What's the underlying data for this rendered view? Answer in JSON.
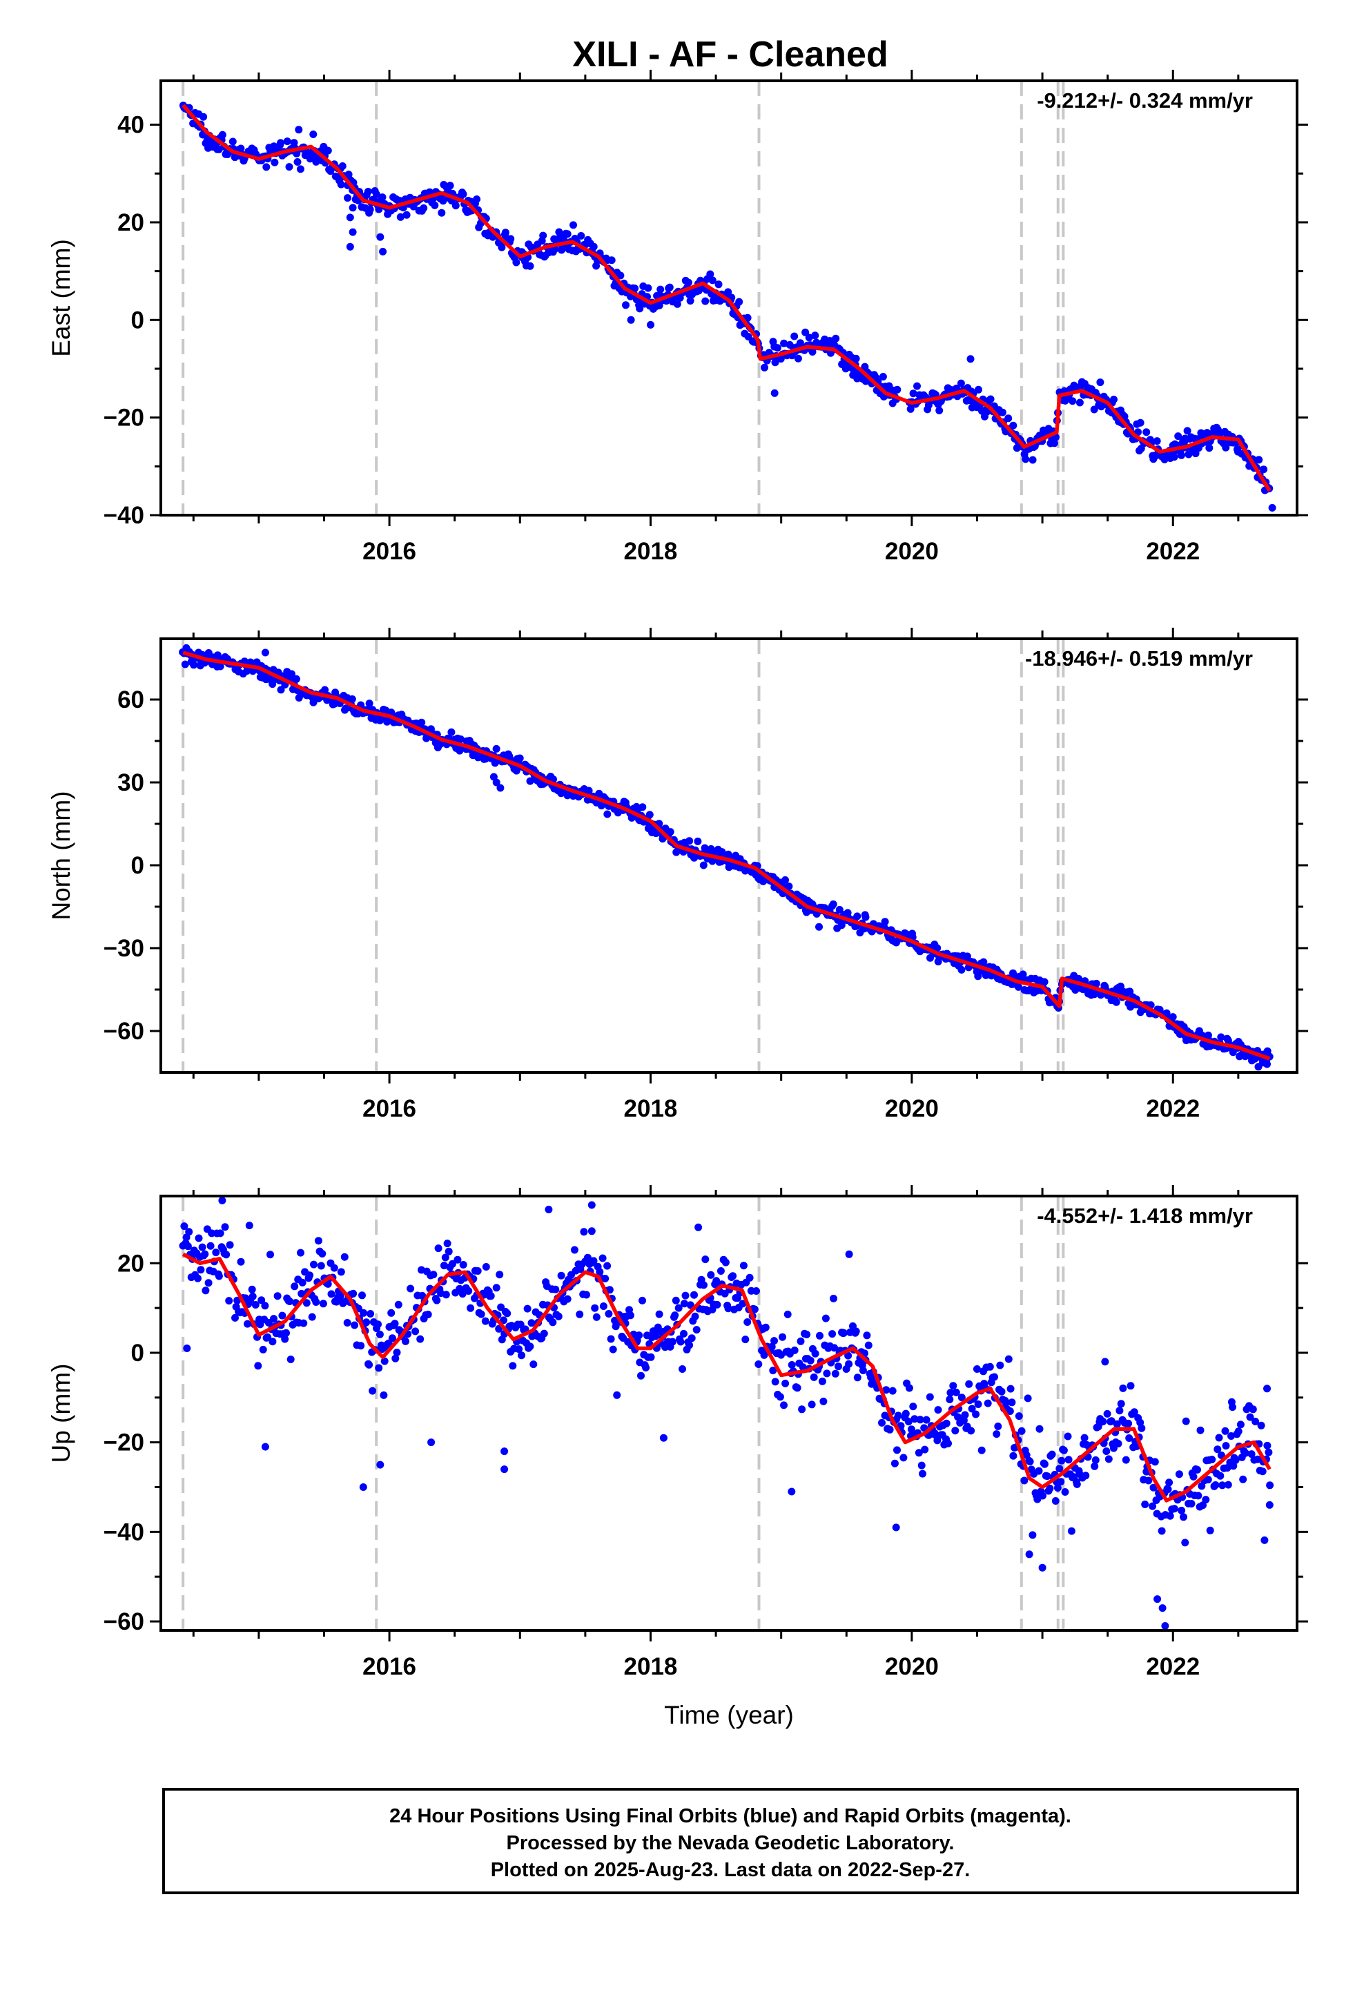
{
  "title": "XILI  - AF - Cleaned",
  "footer": {
    "lines": [
      "24 Hour Positions Using Final Orbits (blue) and Rapid Orbits (magenta).",
      "Processed by the Nevada Geodetic Laboratory.",
      "Plotted on 2025-Aug-23. Last data on 2022-Sep-27."
    ]
  },
  "colors": {
    "data_points": "#0000ff",
    "model_fit": "#ff0000",
    "steps": "#c8c8c8",
    "frame": "#000000"
  },
  "chart_data": [
    {
      "type": "scatter",
      "ylabel": "East (mm)",
      "xlabel": "",
      "rate_label": "-9.212+/- 0.324 mm/yr",
      "xlim": [
        2014.25,
        2022.95
      ],
      "ylim": [
        -40,
        49
      ],
      "xticks": [
        2016,
        2018,
        2020,
        2022
      ],
      "xtick_labels": [
        "2016",
        "2018",
        "2020",
        "2022"
      ],
      "yticks": [
        -40,
        -20,
        0,
        20,
        40
      ],
      "ytick_labels": [
        "−40",
        "−20",
        "0",
        "20",
        "40"
      ],
      "steps": [
        2014.42,
        2015.9,
        2018.83,
        2020.84,
        2021.12,
        2021.16
      ],
      "fit": {
        "x": [
          2014.42,
          2014.6,
          2014.8,
          2015.0,
          2015.2,
          2015.4,
          2015.6,
          2015.8,
          2016.0,
          2016.2,
          2016.4,
          2016.6,
          2016.8,
          2017.0,
          2017.2,
          2017.4,
          2017.6,
          2017.8,
          2018.0,
          2018.2,
          2018.4,
          2018.6,
          2018.82,
          2018.84,
          2019.0,
          2019.2,
          2019.4,
          2019.6,
          2019.8,
          2020.0,
          2020.2,
          2020.4,
          2020.6,
          2020.83,
          2020.86,
          2021.11,
          2021.13,
          2021.3,
          2021.5,
          2021.7,
          2021.9,
          2022.1,
          2022.3,
          2022.5,
          2022.74
        ],
        "y": [
          44,
          38.5,
          34.5,
          33,
          34.5,
          35.5,
          31,
          24.5,
          23,
          24.5,
          26,
          24,
          18,
          13,
          15,
          16,
          13,
          6.5,
          3.5,
          5.5,
          7.5,
          4,
          -4,
          -8,
          -7,
          -5.5,
          -6,
          -10,
          -15,
          -17,
          -16,
          -14.5,
          -18,
          -25,
          -26,
          -23,
          -15.5,
          -14.5,
          -17,
          -23.5,
          -27,
          -26,
          -24,
          -24.5,
          -35
        ]
      },
      "noise_mm": 1.2,
      "outliers": [
        {
          "x": 2015.68,
          "y": 25
        },
        {
          "x": 2015.72,
          "y": 23
        },
        {
          "x": 2015.7,
          "y": 21
        },
        {
          "x": 2015.93,
          "y": 17
        },
        {
          "x": 2015.95,
          "y": 14
        },
        {
          "x": 2015.72,
          "y": 18
        },
        {
          "x": 2015.7,
          "y": 15
        },
        {
          "x": 2017.85,
          "y": 0
        },
        {
          "x": 2018.0,
          "y": -1
        },
        {
          "x": 2018.95,
          "y": -15
        },
        {
          "x": 2020.45,
          "y": -8
        },
        {
          "x": 2021.6,
          "y": -21
        },
        {
          "x": 2022.76,
          "y": -38.5
        }
      ]
    },
    {
      "type": "scatter",
      "ylabel": "North (mm)",
      "xlabel": "",
      "rate_label": "-18.946+/- 0.519 mm/yr",
      "xlim": [
        2014.25,
        2022.95
      ],
      "ylim": [
        -75,
        82
      ],
      "xticks": [
        2016,
        2018,
        2020,
        2022
      ],
      "xtick_labels": [
        "2016",
        "2018",
        "2020",
        "2022"
      ],
      "yticks": [
        -60,
        -30,
        0,
        30,
        60
      ],
      "ytick_labels": [
        "−60",
        "−30",
        "0",
        "30",
        "60"
      ],
      "steps": [
        2014.42,
        2015.9,
        2018.83,
        2020.84,
        2021.12,
        2021.16
      ],
      "fit": {
        "x": [
          2014.42,
          2014.6,
          2014.8,
          2015.0,
          2015.2,
          2015.4,
          2015.6,
          2015.8,
          2016.0,
          2016.2,
          2016.4,
          2016.6,
          2016.8,
          2017.0,
          2017.2,
          2017.4,
          2017.6,
          2017.8,
          2018.0,
          2018.2,
          2018.4,
          2018.6,
          2018.8,
          2019.0,
          2019.2,
          2019.4,
          2019.6,
          2019.8,
          2020.0,
          2020.2,
          2020.4,
          2020.6,
          2020.8,
          2021.0,
          2021.13,
          2021.15,
          2021.3,
          2021.5,
          2021.7,
          2021.9,
          2022.1,
          2022.3,
          2022.5,
          2022.74
        ],
        "y": [
          77,
          74.5,
          73,
          71.5,
          67,
          62.5,
          60.5,
          56,
          54,
          50,
          45.5,
          43,
          39.5,
          36,
          30.5,
          27,
          24,
          20.5,
          16,
          7,
          4,
          2,
          -1,
          -8,
          -15,
          -18,
          -21,
          -24,
          -27.5,
          -32,
          -35,
          -38,
          -42,
          -44,
          -51,
          -41,
          -43,
          -46,
          -49,
          -54,
          -61,
          -64,
          -66,
          -70
        ]
      },
      "noise_mm": 1.5,
      "outliers": [
        {
          "x": 2016.82,
          "y": 30
        },
        {
          "x": 2016.85,
          "y": 28
        },
        {
          "x": 2016.8,
          "y": 32
        },
        {
          "x": 2015.05,
          "y": 77
        },
        {
          "x": 2022.72,
          "y": -72
        }
      ]
    },
    {
      "type": "scatter",
      "ylabel": "Up (mm)",
      "xlabel": "Time (year)",
      "rate_label": "-4.552+/- 1.418 mm/yr",
      "xlim": [
        2014.25,
        2022.95
      ],
      "ylim": [
        -62,
        35
      ],
      "xticks": [
        2016,
        2018,
        2020,
        2022
      ],
      "xtick_labels": [
        "2016",
        "2018",
        "2020",
        "2022"
      ],
      "yticks": [
        -60,
        -40,
        -20,
        0,
        20
      ],
      "ytick_labels": [
        "−60",
        "−40",
        "−20",
        "0",
        "20"
      ],
      "steps": [
        2014.42,
        2015.9,
        2018.83,
        2020.84,
        2021.12,
        2021.16
      ],
      "fit": {
        "x": [
          2014.42,
          2014.55,
          2014.7,
          2014.85,
          2015.0,
          2015.2,
          2015.4,
          2015.55,
          2015.7,
          2015.85,
          2015.95,
          2016.1,
          2016.3,
          2016.45,
          2016.58,
          2016.75,
          2016.95,
          2017.1,
          2017.3,
          2017.5,
          2017.6,
          2017.75,
          2017.9,
          2018.0,
          2018.2,
          2018.4,
          2018.55,
          2018.7,
          2018.85,
          2019.0,
          2019.2,
          2019.4,
          2019.55,
          2019.7,
          2019.85,
          2019.95,
          2020.1,
          2020.3,
          2020.5,
          2020.6,
          2020.75,
          2020.9,
          2021.0,
          2021.15,
          2021.35,
          2021.55,
          2021.7,
          2021.85,
          2021.95,
          2022.1,
          2022.3,
          2022.5,
          2022.62,
          2022.74
        ],
        "y": [
          22,
          20,
          21,
          13,
          4,
          7,
          14,
          17,
          12,
          2,
          -1,
          4,
          13,
          17.5,
          18,
          10,
          3,
          5,
          13,
          18,
          17,
          8,
          1,
          1,
          6,
          12,
          15,
          14,
          3,
          -5,
          -4,
          -1,
          1,
          -3,
          -15,
          -20,
          -18,
          -13,
          -9,
          -8,
          -15,
          -28,
          -30,
          -27,
          -22,
          -17,
          -17,
          -28,
          -33,
          -31,
          -26,
          -21,
          -20,
          -26
        ]
      },
      "noise_mm": 4.0,
      "outliers": [
        {
          "x": 2014.45,
          "y": 1
        },
        {
          "x": 2014.72,
          "y": 34
        },
        {
          "x": 2015.05,
          "y": -21
        },
        {
          "x": 2015.8,
          "y": -30
        },
        {
          "x": 2015.93,
          "y": -25
        },
        {
          "x": 2016.32,
          "y": -20
        },
        {
          "x": 2016.88,
          "y": -26
        },
        {
          "x": 2016.88,
          "y": -22
        },
        {
          "x": 2017.22,
          "y": 32
        },
        {
          "x": 2017.55,
          "y": 33
        },
        {
          "x": 2018.1,
          "y": -19
        },
        {
          "x": 2019.08,
          "y": -31
        },
        {
          "x": 2019.52,
          "y": 22
        },
        {
          "x": 2019.88,
          "y": -39
        },
        {
          "x": 2020.9,
          "y": -45
        },
        {
          "x": 2021.0,
          "y": -48
        },
        {
          "x": 2021.48,
          "y": -2
        },
        {
          "x": 2021.88,
          "y": -55
        },
        {
          "x": 2021.94,
          "y": -61
        },
        {
          "x": 2021.92,
          "y": -57
        },
        {
          "x": 2022.45,
          "y": -11
        },
        {
          "x": 2022.72,
          "y": -8
        },
        {
          "x": 2022.74,
          "y": -34
        }
      ]
    }
  ]
}
